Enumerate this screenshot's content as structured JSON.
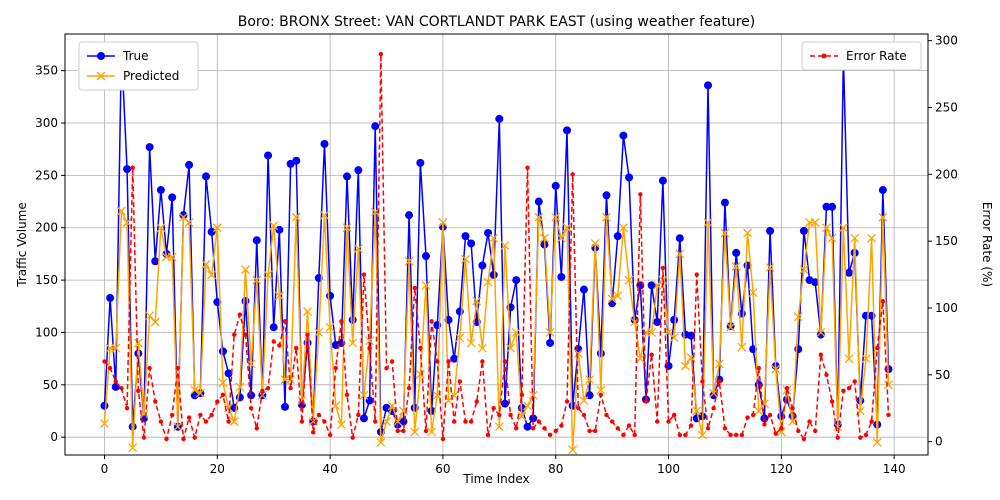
{
  "chart_data": {
    "type": "line",
    "title": "Boro: BRONX Street: VAN CORTLANDT PARK EAST (using weather feature)",
    "xlabel": "Time Index",
    "ylabel": "Traffic Volume",
    "y2label": "Error Rate (%)",
    "xlim": [
      -7,
      146
    ],
    "ylim": [
      -17,
      385
    ],
    "y2lim": [
      -10,
      305
    ],
    "x_ticks": [
      0,
      20,
      40,
      60,
      80,
      100,
      120,
      140
    ],
    "y_ticks": [
      0,
      50,
      100,
      150,
      200,
      250,
      300,
      350
    ],
    "y2_ticks": [
      0,
      50,
      100,
      150,
      200,
      250,
      300
    ],
    "grid": true,
    "legend_left": "top-left",
    "legend_right": "top-right",
    "series": [
      {
        "name": "True",
        "axis": "left",
        "color": "#0000ff",
        "marker": "circle",
        "line_style": "solid",
        "values": [
          30,
          133,
          48,
          372,
          256,
          10,
          80,
          18,
          277,
          168,
          236,
          175,
          229,
          10,
          212,
          260,
          40,
          42,
          249,
          196,
          129,
          82,
          61,
          28,
          38,
          130,
          40,
          188,
          40,
          269,
          105,
          198,
          29,
          261,
          264,
          31,
          90,
          15,
          152,
          280,
          135,
          88,
          90,
          249,
          112,
          255,
          18,
          35,
          297,
          5,
          28,
          25,
          12,
          15,
          212,
          28,
          262,
          173,
          25,
          107,
          201,
          112,
          75,
          120,
          192,
          185,
          110,
          164,
          195,
          155,
          304,
          32,
          124,
          150,
          28,
          10,
          18,
          225,
          184,
          90,
          240,
          153,
          293,
          30,
          84,
          141,
          40,
          181,
          80,
          231,
          128,
          192,
          288,
          248,
          112,
          145,
          36,
          145,
          110,
          245,
          68,
          112,
          190,
          98,
          97,
          18,
          20,
          336,
          40,
          55,
          224,
          106,
          176,
          118,
          164,
          84,
          50,
          18,
          197,
          68,
          20,
          36,
          20,
          84,
          197,
          150,
          148,
          98,
          220,
          220,
          12,
          364,
          157,
          176,
          35,
          116,
          116,
          12,
          236,
          65
        ]
      },
      {
        "name": "Predicted",
        "axis": "left",
        "color": "#ffa500",
        "marker": "x",
        "line_style": "solid",
        "values": [
          13,
          85,
          85,
          216,
          205,
          -10,
          90,
          22,
          116,
          110,
          200,
          172,
          172,
          10,
          210,
          205,
          45,
          42,
          165,
          155,
          200,
          52,
          28,
          15,
          48,
          160,
          70,
          150,
          40,
          155,
          202,
          135,
          55,
          55,
          210,
          35,
          120,
          15,
          100,
          212,
          105,
          30,
          12,
          200,
          90,
          180,
          40,
          92,
          215,
          -5,
          15,
          30,
          15,
          25,
          168,
          5,
          60,
          145,
          5,
          40,
          205,
          35,
          40,
          95,
          170,
          90,
          130,
          85,
          148,
          190,
          10,
          183,
          85,
          100,
          20,
          30,
          40,
          210,
          190,
          100,
          210,
          190,
          200,
          -12,
          80,
          35,
          55,
          185,
          45,
          210,
          132,
          135,
          200,
          150,
          110,
          75,
          100,
          100,
          145,
          150,
          100,
          95,
          175,
          68,
          76,
          25,
          2,
          205,
          42,
          70,
          195,
          105,
          163,
          86,
          195,
          138,
          25,
          32,
          162,
          65,
          5,
          45,
          15,
          115,
          160,
          205,
          205,
          100,
          200,
          190,
          10,
          200,
          75,
          190,
          25,
          75,
          190,
          -5,
          210,
          50
        ]
      },
      {
        "name": "Error Rate",
        "axis": "right",
        "color": "#ff0000",
        "marker": "dot",
        "line_style": "dashed",
        "values": [
          60,
          55,
          45,
          40,
          25,
          205,
          38,
          3,
          55,
          30,
          15,
          2,
          20,
          55,
          2,
          18,
          3,
          20,
          15,
          20,
          30,
          35,
          15,
          80,
          95,
          80,
          25,
          10,
          38,
          40,
          75,
          72,
          90,
          40,
          70,
          15,
          80,
          7,
          20,
          15,
          5,
          55,
          90,
          35,
          3,
          20,
          125,
          70,
          15,
          290,
          55,
          60,
          8,
          8,
          40,
          115,
          70,
          8,
          90,
          60,
          2,
          60,
          15,
          45,
          15,
          15,
          30,
          60,
          5,
          25,
          20,
          60,
          20,
          10,
          35,
          205,
          10,
          15,
          10,
          5,
          8,
          12,
          30,
          200,
          25,
          20,
          8,
          8,
          35,
          20,
          15,
          10,
          5,
          12,
          5,
          185,
          30,
          65,
          15,
          130,
          15,
          20,
          5,
          5,
          12,
          125,
          45,
          10,
          25,
          45,
          10,
          5,
          5,
          5,
          18,
          20,
          55,
          13,
          20,
          6,
          10,
          40,
          25,
          8,
          2,
          15,
          8,
          65,
          50,
          30,
          3,
          38,
          40,
          45,
          3,
          5,
          15,
          70,
          105,
          20
        ]
      }
    ]
  }
}
